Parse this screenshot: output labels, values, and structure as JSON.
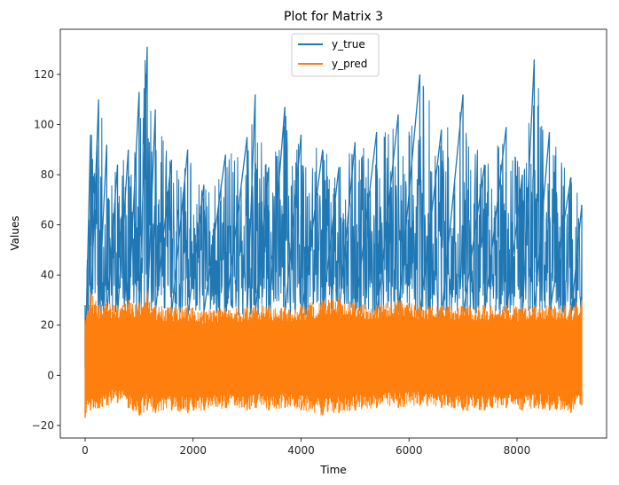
{
  "chart_data": {
    "type": "line",
    "title": "Plot for Matrix 3",
    "xlabel": "Time",
    "ylabel": "Values",
    "xlim": [
      -460,
      9660
    ],
    "ylim": [
      -25,
      138
    ],
    "xticks": [
      0,
      2000,
      4000,
      6000,
      8000
    ],
    "yticks": [
      -20,
      0,
      20,
      40,
      60,
      80,
      100,
      120
    ],
    "legend": {
      "placement": "top-center",
      "entries": [
        "y_true",
        "y_pred"
      ]
    },
    "grid": false,
    "n_points": 9200,
    "series": [
      {
        "name": "y_true",
        "color": "#1f77b4",
        "x": [
          0,
          100,
          250,
          400,
          600,
          800,
          1000,
          1150,
          1300,
          1600,
          1900,
          2200,
          2600,
          3000,
          3150,
          3400,
          3700,
          4000,
          4400,
          4700,
          5000,
          5400,
          5800,
          6200,
          6600,
          7000,
          7400,
          7800,
          8100,
          8320,
          8600,
          9000,
          9200
        ],
        "upper_envelope": [
          28,
          96,
          110,
          92,
          84,
          90,
          113,
          131,
          106,
          86,
          90,
          76,
          88,
          95,
          112,
          83,
          107,
          96,
          90,
          83,
          93,
          97,
          104,
          120,
          98,
          112,
          84,
          99,
          80,
          126,
          97,
          79,
          68
        ],
        "lower_envelope": [
          3,
          24,
          25,
          23,
          24,
          25,
          23,
          24,
          25,
          24,
          23,
          25,
          24,
          23,
          24,
          25,
          24,
          23,
          25,
          24,
          24,
          23,
          25,
          24,
          23,
          24,
          25,
          24,
          23,
          25,
          24,
          23,
          24
        ]
      },
      {
        "name": "y_pred",
        "color": "#ff7f0e",
        "x": [
          0,
          100,
          250,
          400,
          600,
          800,
          1000,
          1150,
          1300,
          1600,
          1900,
          2200,
          2600,
          3000,
          3150,
          3400,
          3700,
          4000,
          4400,
          4700,
          5000,
          5400,
          5800,
          6200,
          6600,
          7000,
          7400,
          7800,
          8100,
          8320,
          8600,
          9000,
          9200
        ],
        "upper_envelope": [
          22,
          33,
          28,
          29,
          28,
          30,
          29,
          33,
          28,
          27,
          28,
          26,
          27,
          27,
          28,
          28,
          27,
          28,
          30,
          31,
          29,
          28,
          30,
          28,
          28,
          28,
          28,
          28,
          27,
          28,
          28,
          28,
          30
        ],
        "lower_envelope": [
          -17,
          -14,
          -13,
          -12,
          -11,
          -13,
          -16,
          -14,
          -15,
          -14,
          -15,
          -14,
          -13,
          -14,
          -13,
          -14,
          -13,
          -14,
          -16,
          -15,
          -14,
          -13,
          -13,
          -12,
          -13,
          -14,
          -14,
          -13,
          -14,
          -13,
          -14,
          -15,
          -12
        ]
      }
    ]
  }
}
